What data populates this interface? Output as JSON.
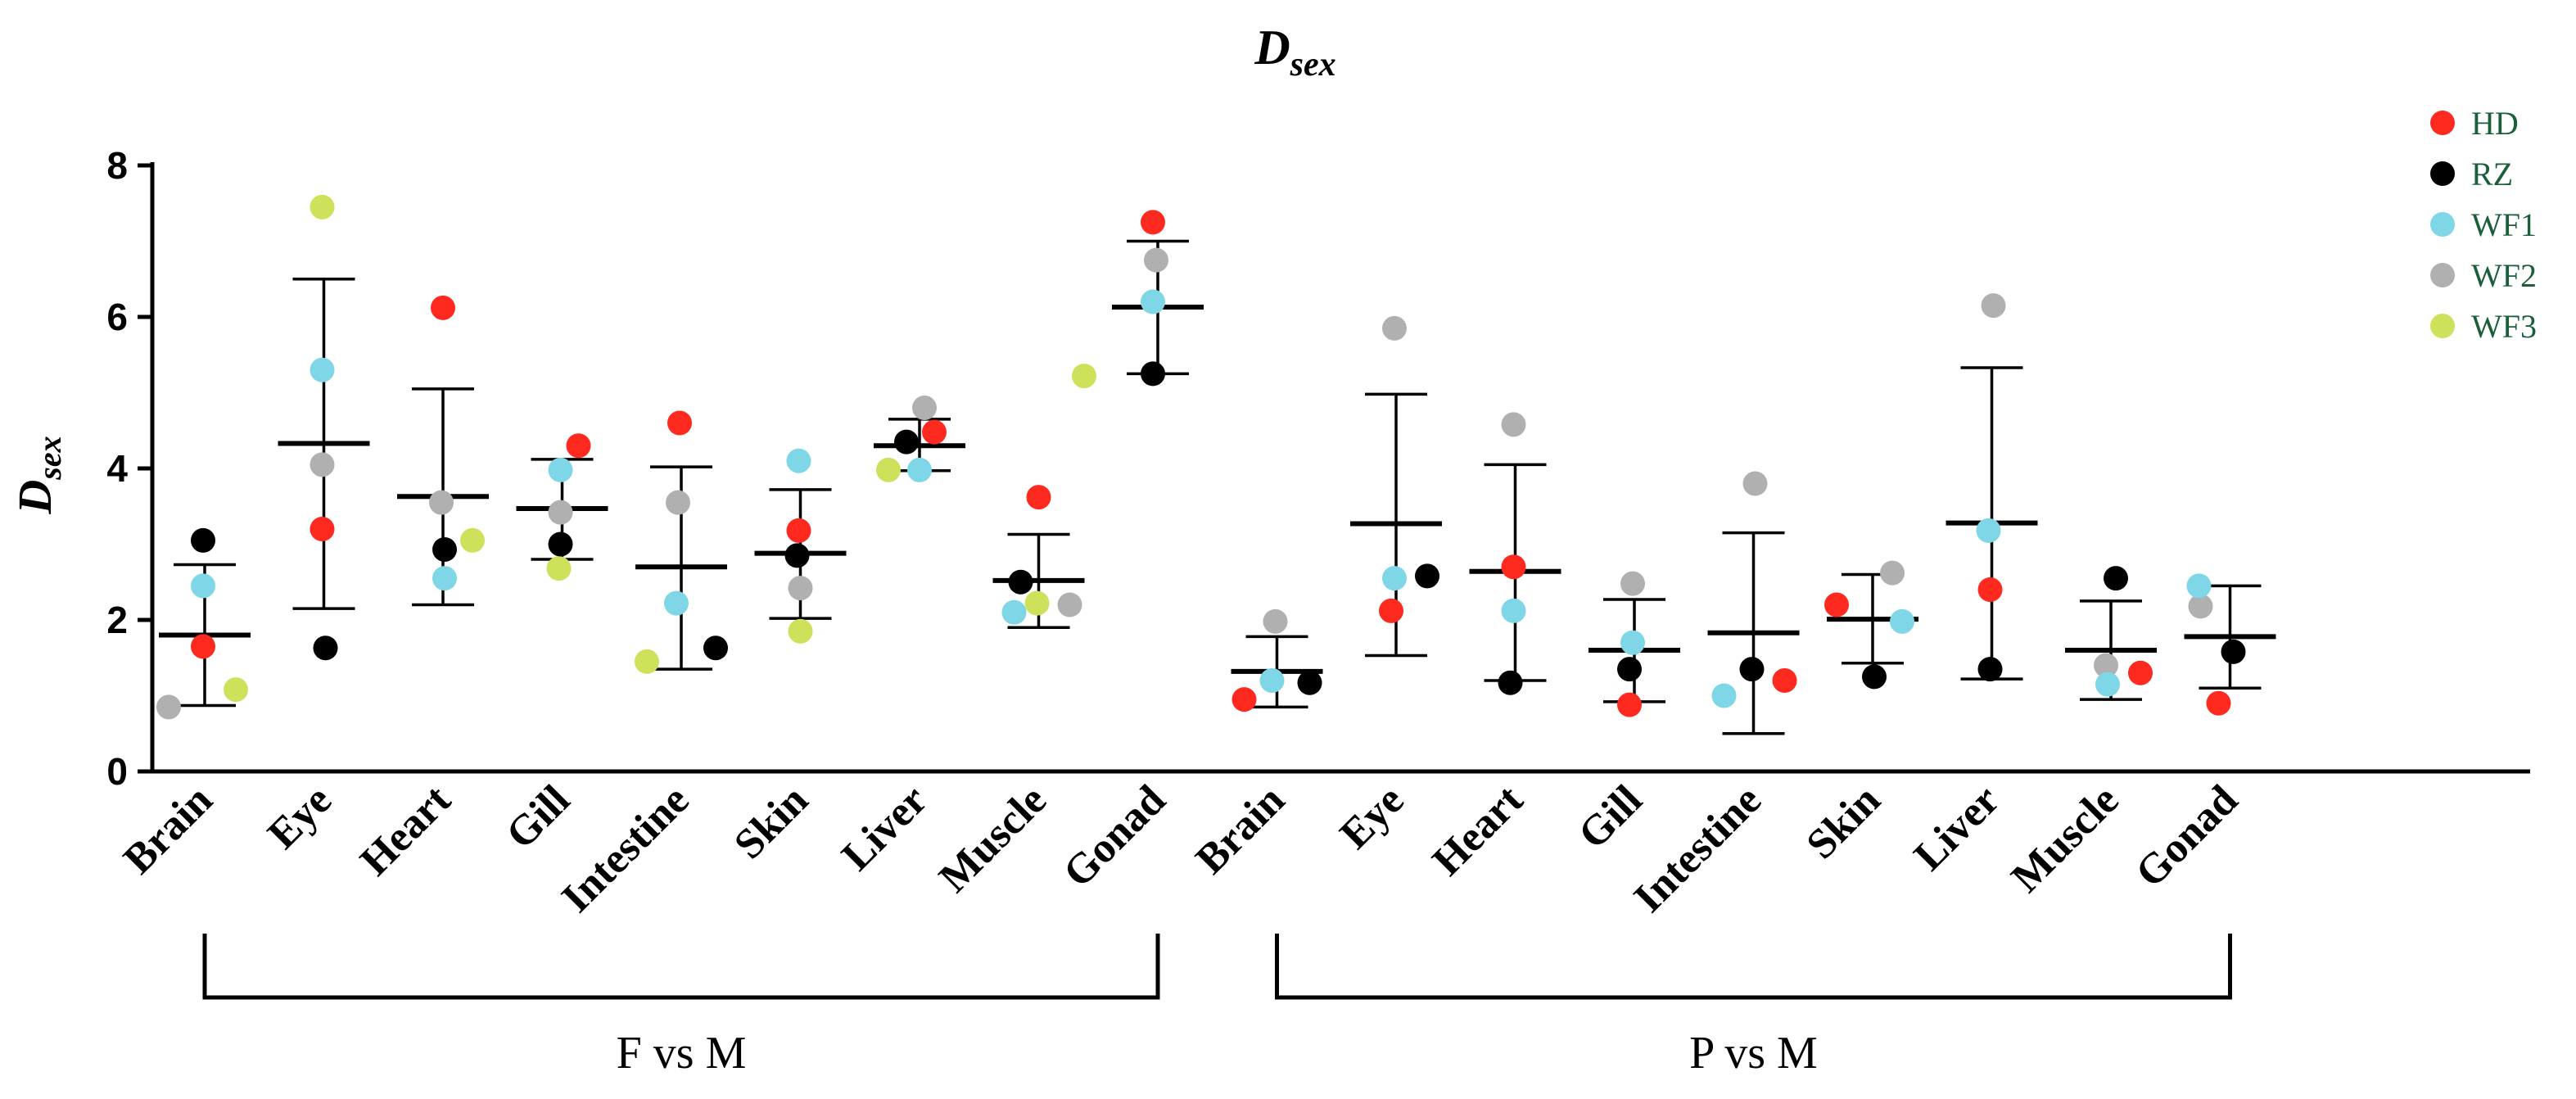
{
  "chart_data": {
    "type": "scatter",
    "title": "D",
    "title_sub": "sex",
    "ylabel": "D",
    "ylabel_sub": "sex",
    "ylim": [
      0,
      8
    ],
    "yticks": [
      0,
      2,
      4,
      6,
      8
    ],
    "grid": false,
    "legend_position": "top-right",
    "series": [
      {
        "name": "HD",
        "color": "#ff2a1f"
      },
      {
        "name": "RZ",
        "color": "#000000"
      },
      {
        "name": "WF1",
        "color": "#7ed6e6"
      },
      {
        "name": "WF2",
        "color": "#b0b0b0"
      },
      {
        "name": "WF3",
        "color": "#cfe05a"
      }
    ],
    "groups": [
      {
        "label": "F vs M",
        "categories": [
          "Brain",
          "Eye",
          "Heart",
          "Gill",
          "Intestine",
          "Skin",
          "Liver",
          "Muscle",
          "Gonad"
        ],
        "points": [
          {
            "HD": 1.65,
            "RZ": 3.05,
            "WF1": 2.45,
            "WF2": 0.85,
            "WF3": 1.08
          },
          {
            "HD": 3.2,
            "RZ": 1.63,
            "WF1": 5.3,
            "WF2": 4.05,
            "WF3": 7.45
          },
          {
            "HD": 6.12,
            "RZ": 2.93,
            "WF1": 2.55,
            "WF2": 3.55,
            "WF3": 3.05
          },
          {
            "HD": 4.3,
            "RZ": 3.0,
            "WF1": 3.98,
            "WF2": 3.42,
            "WF3": 2.68
          },
          {
            "HD": 4.6,
            "RZ": 1.63,
            "WF1": 2.22,
            "WF2": 3.55,
            "WF3": 1.45
          },
          {
            "HD": 3.18,
            "RZ": 2.85,
            "WF1": 4.1,
            "WF2": 2.42,
            "WF3": 1.85
          },
          {
            "HD": 4.48,
            "RZ": 4.35,
            "WF1": 3.98,
            "WF2": 4.8,
            "WF3": 3.98
          },
          {
            "HD": 3.62,
            "RZ": 2.5,
            "WF1": 2.1,
            "WF2": 2.2,
            "WF3": 2.22
          },
          {
            "HD": 7.25,
            "RZ": 5.25,
            "WF1": 6.2,
            "WF2": 6.75,
            "WF3": 5.22
          }
        ],
        "mean": [
          1.8,
          4.33,
          3.63,
          3.47,
          2.7,
          2.88,
          4.3,
          2.52,
          6.13
        ],
        "sd_upper": [
          2.73,
          6.5,
          5.05,
          4.12,
          4.02,
          3.72,
          4.65,
          3.13,
          7.0
        ],
        "sd_lower": [
          0.87,
          2.15,
          2.2,
          2.8,
          1.35,
          2.02,
          3.97,
          1.9,
          5.25
        ]
      },
      {
        "label": "P vs M",
        "categories": [
          "Brain",
          "Eye",
          "Heart",
          "Gill",
          "Intestine",
          "Skin",
          "Liver",
          "Muscle",
          "Gonad"
        ],
        "points": [
          {
            "HD": 0.95,
            "RZ": 1.17,
            "WF1": 1.2,
            "WF2": 1.98
          },
          {
            "HD": 2.12,
            "RZ": 2.58,
            "WF1": 2.55,
            "WF2": 5.85
          },
          {
            "HD": 2.7,
            "RZ": 1.17,
            "WF1": 2.12,
            "WF2": 4.58
          },
          {
            "HD": 0.88,
            "RZ": 1.35,
            "WF1": 1.7,
            "WF2": 2.48
          },
          {
            "HD": 1.2,
            "RZ": 1.35,
            "WF1": 1.0,
            "WF2": 3.8
          },
          {
            "HD": 2.2,
            "RZ": 1.25,
            "WF1": 1.98,
            "WF2": 2.62
          },
          {
            "HD": 2.4,
            "RZ": 1.35,
            "WF1": 3.18,
            "WF2": 6.15
          },
          {
            "HD": 1.3,
            "RZ": 2.55,
            "WF1": 1.15,
            "WF2": 1.4
          },
          {
            "HD": 0.9,
            "RZ": 1.58,
            "WF1": 2.45,
            "WF2": 2.18
          }
        ],
        "mean": [
          1.32,
          3.27,
          2.64,
          1.6,
          1.83,
          2.01,
          3.28,
          1.6,
          1.78
        ],
        "sd_upper": [
          1.78,
          4.98,
          4.05,
          2.27,
          3.15,
          2.6,
          5.33,
          2.25,
          2.45
        ],
        "sd_lower": [
          0.85,
          1.53,
          1.2,
          0.92,
          0.5,
          1.43,
          1.22,
          0.95,
          1.1
        ]
      }
    ]
  }
}
